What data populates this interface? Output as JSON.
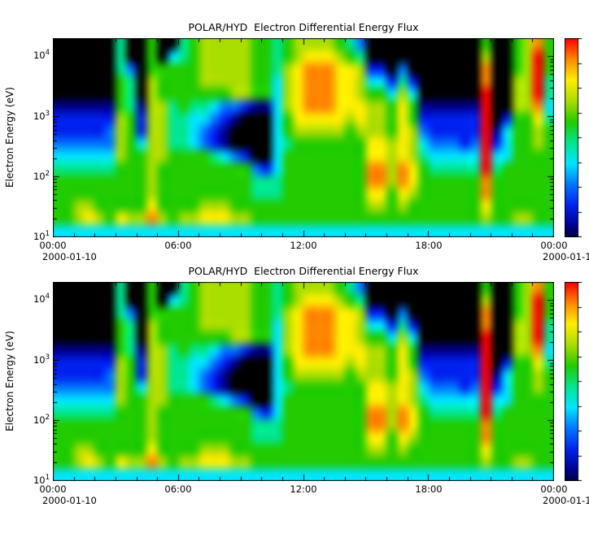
{
  "chart_data": {
    "type": "heatmap",
    "title": "POLAR/HYD  Electron Differential Energy Flux",
    "ylabel": "Electron Energy (eV)",
    "x_ticks": [
      "00:00",
      "06:00",
      "12:00",
      "18:00",
      "00:00"
    ],
    "x_tick_hours": [
      0,
      6,
      12,
      18,
      24
    ],
    "x_minor_step_hours": 1,
    "x_range_hours": [
      0,
      24
    ],
    "y_tick_exponents": [
      1,
      2,
      3,
      4
    ],
    "y_range_log10_ev": [
      1.0,
      4.3
    ],
    "legend_position": "right-colorbar",
    "grid_lines": "off",
    "panels": [
      {
        "title": "POLAR/HYD  Electron Differential Energy Flux",
        "date_left": "2000-01-10",
        "date_right": "2000-01-1"
      },
      {
        "title": "POLAR/HYD  Electron Differential Energy Flux",
        "date_left": "2000-01-10",
        "date_right": "2000-01-1"
      }
    ],
    "colormap_stops": [
      {
        "v": 0.0,
        "color": "#000000"
      },
      {
        "v": 0.1,
        "color": "#00008C"
      },
      {
        "v": 0.2,
        "color": "#0022EE"
      },
      {
        "v": 0.3,
        "color": "#0077FF"
      },
      {
        "v": 0.4,
        "color": "#00E5FF"
      },
      {
        "v": 0.5,
        "color": "#00E690"
      },
      {
        "v": 0.6,
        "color": "#22CC00"
      },
      {
        "v": 0.7,
        "color": "#AADD00"
      },
      {
        "v": 0.8,
        "color": "#FFEE00"
      },
      {
        "v": 0.9,
        "color": "#FF8800"
      },
      {
        "v": 1.0,
        "color": "#FF0000"
      }
    ],
    "colorbar": {
      "min_v": 0.05,
      "max_v": 1.0,
      "tick_count": 9
    },
    "grid": {
      "cols": 48,
      "rows": 16,
      "time_hours": [
        0,
        24
      ],
      "energy_log10_ev_top_to_bottom": [
        4.3,
        1.0
      ],
      "value_scale": "relative flux 0=black(min) to 10=red(max)",
      "values": [
        [
          0,
          0,
          0,
          0,
          0,
          0,
          5,
          0,
          0,
          6,
          0,
          0,
          5,
          6,
          7,
          7,
          7,
          7,
          7,
          6,
          6,
          5,
          6,
          7,
          7,
          7,
          7,
          6,
          5,
          3,
          0,
          0,
          0,
          0,
          0,
          0,
          0,
          0,
          0,
          0,
          0,
          6,
          0,
          0,
          6,
          7,
          9,
          6
        ],
        [
          0,
          0,
          0,
          0,
          0,
          0,
          5,
          0,
          0,
          6,
          0,
          4,
          5,
          6,
          7,
          7,
          7,
          7,
          7,
          6,
          6,
          5,
          6,
          7,
          8,
          8,
          8,
          7,
          6,
          5,
          0,
          0,
          0,
          0,
          0,
          0,
          0,
          0,
          0,
          0,
          0,
          7,
          0,
          0,
          6,
          7,
          10,
          6
        ],
        [
          0,
          0,
          0,
          0,
          0,
          0,
          5,
          3,
          0,
          6,
          6,
          6,
          6,
          6,
          7,
          7,
          7,
          7,
          7,
          6,
          6,
          5,
          7,
          8,
          9,
          9,
          9,
          8,
          8,
          7,
          2,
          2,
          0,
          3,
          0,
          0,
          0,
          0,
          0,
          0,
          0,
          9,
          0,
          0,
          6,
          7,
          10,
          6
        ],
        [
          0,
          0,
          0,
          0,
          0,
          0,
          6,
          5,
          0,
          7,
          6,
          6,
          6,
          6,
          7,
          7,
          7,
          7,
          7,
          6,
          6,
          4,
          7,
          8,
          9,
          9,
          9,
          8,
          8,
          7,
          4,
          4,
          2,
          5,
          2,
          0,
          0,
          0,
          0,
          0,
          0,
          9,
          0,
          0,
          7,
          7,
          10,
          5
        ],
        [
          0,
          0,
          0,
          0,
          0,
          0,
          6,
          5,
          0,
          7,
          6,
          6,
          6,
          6,
          6,
          6,
          6,
          7,
          7,
          6,
          6,
          4,
          7,
          8,
          9,
          9,
          9,
          8,
          8,
          7,
          6,
          6,
          4,
          7,
          4,
          0,
          0,
          0,
          0,
          0,
          0,
          10,
          0,
          0,
          7,
          7,
          10,
          5
        ],
        [
          1,
          1,
          1,
          1,
          1,
          1,
          6,
          5,
          1,
          7,
          7,
          5,
          6,
          5,
          5,
          4,
          3,
          3,
          2,
          1,
          1,
          4,
          7,
          8,
          9,
          9,
          9,
          8,
          8,
          8,
          7,
          7,
          6,
          8,
          6,
          1,
          1,
          1,
          1,
          1,
          1,
          10,
          0,
          0,
          7,
          7,
          9,
          4
        ],
        [
          2,
          2,
          2,
          2,
          2,
          2,
          7,
          6,
          2,
          7,
          7,
          5,
          5,
          4,
          4,
          3,
          2,
          1,
          0,
          0,
          0,
          4,
          6,
          8,
          8,
          8,
          8,
          8,
          7,
          8,
          7,
          7,
          6,
          8,
          6,
          2,
          2,
          2,
          2,
          2,
          2,
          10,
          0,
          2,
          6,
          6,
          8,
          5
        ],
        [
          2,
          2,
          2,
          2,
          2,
          3,
          7,
          6,
          2,
          7,
          7,
          5,
          5,
          4,
          3,
          2,
          1,
          0,
          0,
          0,
          0,
          4,
          6,
          7,
          7,
          7,
          7,
          7,
          6,
          7,
          7,
          7,
          6,
          8,
          7,
          3,
          2,
          2,
          2,
          2,
          2,
          10,
          1,
          4,
          6,
          6,
          7,
          6
        ],
        [
          3,
          3,
          3,
          3,
          3,
          3,
          7,
          6,
          4,
          7,
          7,
          5,
          5,
          4,
          3,
          2,
          1,
          0,
          0,
          0,
          0,
          4,
          5,
          6,
          6,
          6,
          6,
          6,
          6,
          6,
          8,
          8,
          7,
          8,
          7,
          4,
          3,
          3,
          3,
          2,
          3,
          10,
          2,
          4,
          6,
          6,
          7,
          6
        ],
        [
          4,
          4,
          4,
          4,
          4,
          4,
          7,
          6,
          6,
          7,
          7,
          6,
          6,
          6,
          6,
          5,
          4,
          3,
          2,
          0,
          0,
          4,
          6,
          6,
          6,
          6,
          6,
          6,
          6,
          6,
          8,
          8,
          7,
          8,
          7,
          5,
          4,
          4,
          4,
          4,
          4,
          10,
          4,
          4,
          6,
          6,
          6,
          6
        ],
        [
          5,
          5,
          5,
          5,
          5,
          5,
          6,
          6,
          6,
          7,
          6,
          6,
          6,
          6,
          6,
          6,
          6,
          6,
          6,
          3,
          2,
          4,
          6,
          6,
          6,
          6,
          6,
          6,
          6,
          6,
          9,
          9,
          7,
          9,
          8,
          6,
          5,
          5,
          5,
          5,
          5,
          10,
          5,
          6,
          6,
          6,
          6,
          6
        ],
        [
          6,
          6,
          6,
          6,
          6,
          6,
          6,
          6,
          6,
          7,
          6,
          6,
          6,
          6,
          6,
          6,
          6,
          6,
          6,
          5,
          5,
          5,
          6,
          6,
          6,
          6,
          6,
          6,
          6,
          6,
          9,
          9,
          7,
          9,
          8,
          6,
          6,
          6,
          6,
          6,
          6,
          9,
          6,
          6,
          6,
          6,
          6,
          6
        ],
        [
          6,
          6,
          6,
          6,
          6,
          6,
          6,
          6,
          6,
          7,
          6,
          6,
          6,
          6,
          6,
          6,
          6,
          6,
          6,
          5,
          5,
          5,
          6,
          6,
          6,
          6,
          6,
          6,
          6,
          6,
          8,
          8,
          6,
          8,
          7,
          6,
          6,
          6,
          6,
          6,
          6,
          9,
          6,
          6,
          6,
          6,
          6,
          6
        ],
        [
          6,
          6,
          7,
          7,
          6,
          6,
          6,
          6,
          6,
          8,
          6,
          6,
          6,
          6,
          7,
          7,
          7,
          6,
          6,
          6,
          6,
          6,
          6,
          6,
          6,
          6,
          6,
          6,
          6,
          6,
          7,
          7,
          6,
          7,
          6,
          6,
          6,
          6,
          6,
          6,
          6,
          8,
          6,
          6,
          6,
          6,
          6,
          6
        ],
        [
          6,
          6,
          7,
          8,
          7,
          6,
          8,
          7,
          7,
          9,
          7,
          6,
          7,
          7,
          8,
          8,
          8,
          7,
          7,
          6,
          6,
          6,
          6,
          6,
          6,
          6,
          6,
          6,
          6,
          6,
          6,
          6,
          6,
          6,
          6,
          6,
          6,
          6,
          6,
          6,
          6,
          7,
          6,
          6,
          7,
          7,
          6,
          6
        ],
        [
          4,
          4,
          4,
          4,
          4,
          4,
          4,
          4,
          4,
          4,
          4,
          4,
          4,
          4,
          4,
          4,
          4,
          4,
          4,
          4,
          4,
          4,
          4,
          4,
          4,
          4,
          4,
          4,
          4,
          4,
          4,
          4,
          4,
          4,
          4,
          4,
          4,
          4,
          4,
          4,
          4,
          4,
          4,
          4,
          4,
          4,
          4,
          4
        ]
      ]
    }
  }
}
